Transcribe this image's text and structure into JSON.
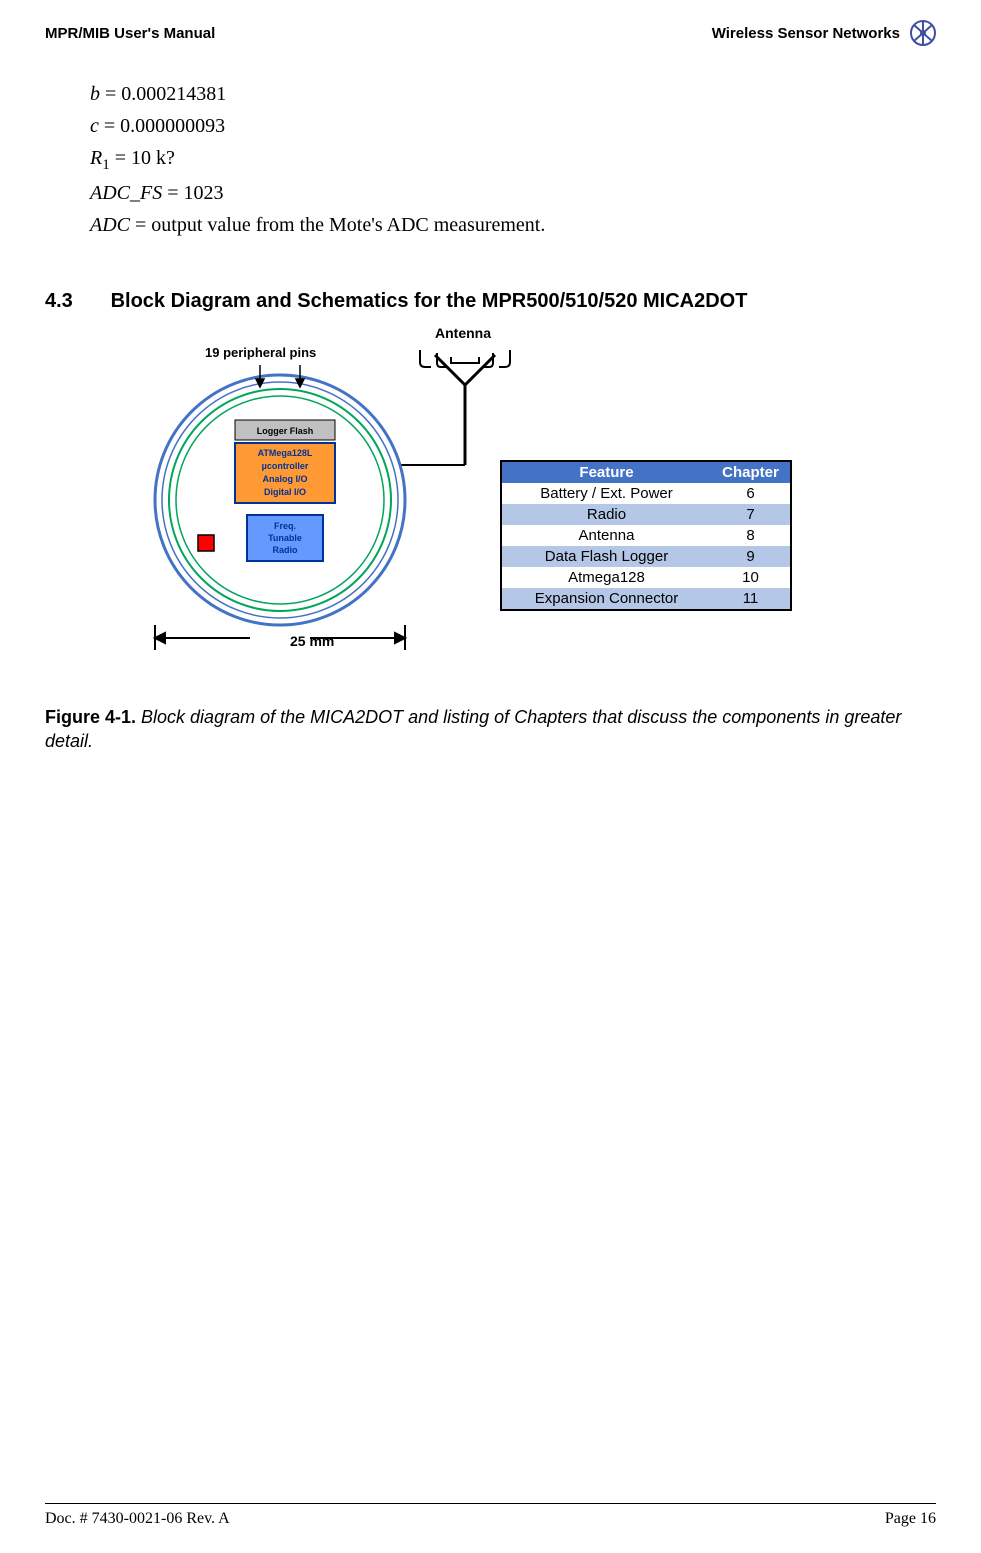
{
  "header": {
    "left": "MPR/MIB User's Manual",
    "right": "Wireless Sensor Networks"
  },
  "equations": {
    "b": {
      "var": "b",
      "rhs": " = 0.000214381"
    },
    "c": {
      "var": "c",
      "rhs": " = 0.000000093"
    },
    "r1": {
      "var": "R",
      "sub": "1",
      "rhs": " = 10 k?"
    },
    "adc_fs": {
      "var": "ADC_FS ",
      "rhs": " = 1023"
    },
    "adc": {
      "var": "ADC",
      "rhs": " = output value from the Mote's ADC measurement."
    }
  },
  "section": {
    "number": "4.3",
    "title": "Block Diagram and Schematics for the MPR500/510/520 MICA2DOT"
  },
  "diagram": {
    "labels": {
      "antenna": "Antenna",
      "pins": "19 peripheral pins",
      "dimension": "25 mm"
    },
    "boxes": {
      "logger": {
        "text": "Logger Flash",
        "fill": "#c0c0c0",
        "border": "#000000",
        "text_color": "#000000",
        "fontsize": 9
      },
      "mcu": {
        "l1": "ATMega128L",
        "l2": "µcontroller",
        "l3": "Analog I/O",
        "l4": "Digital I/O",
        "fill": "#ff9933",
        "border": "#003399",
        "text_color": "#003399",
        "fontsize": 9
      },
      "radio": {
        "l1": "Freq.",
        "l2": "Tunable",
        "l3": "Radio",
        "fill": "#6699ff",
        "border": "#003399",
        "text_color": "#003399",
        "fontsize": 9
      }
    },
    "colors": {
      "outer_ring": "#4472c4",
      "inner_ring": "#00a65a",
      "led_fill": "#ff0000",
      "led_border": "#000000",
      "antenna_line": "#000000"
    }
  },
  "table": {
    "header_bg": "#4472c4",
    "row_alt_bg": "#b4c7e7",
    "row_bg": "#ffffff",
    "columns": {
      "feature": "Feature",
      "chapter": "Chapter"
    },
    "rows": [
      {
        "feature": "Battery / Ext. Power",
        "chapter": "6",
        "alt": false
      },
      {
        "feature": "Radio",
        "chapter": "7",
        "alt": true
      },
      {
        "feature": "Antenna",
        "chapter": "8",
        "alt": false
      },
      {
        "feature": "Data Flash Logger",
        "chapter": "9",
        "alt": true
      },
      {
        "feature": "Atmega128",
        "chapter": "10",
        "alt": false
      },
      {
        "feature": "Expansion Connector",
        "chapter": "11",
        "alt": true
      }
    ]
  },
  "caption": {
    "label": "Figure 4-1. ",
    "text": "Block diagram of the MICA2DOT and listing of Chapters that discuss the components in greater detail."
  },
  "footer": {
    "left": "Doc. # 7430-0021-06 Rev. A",
    "right": "Page 16"
  }
}
